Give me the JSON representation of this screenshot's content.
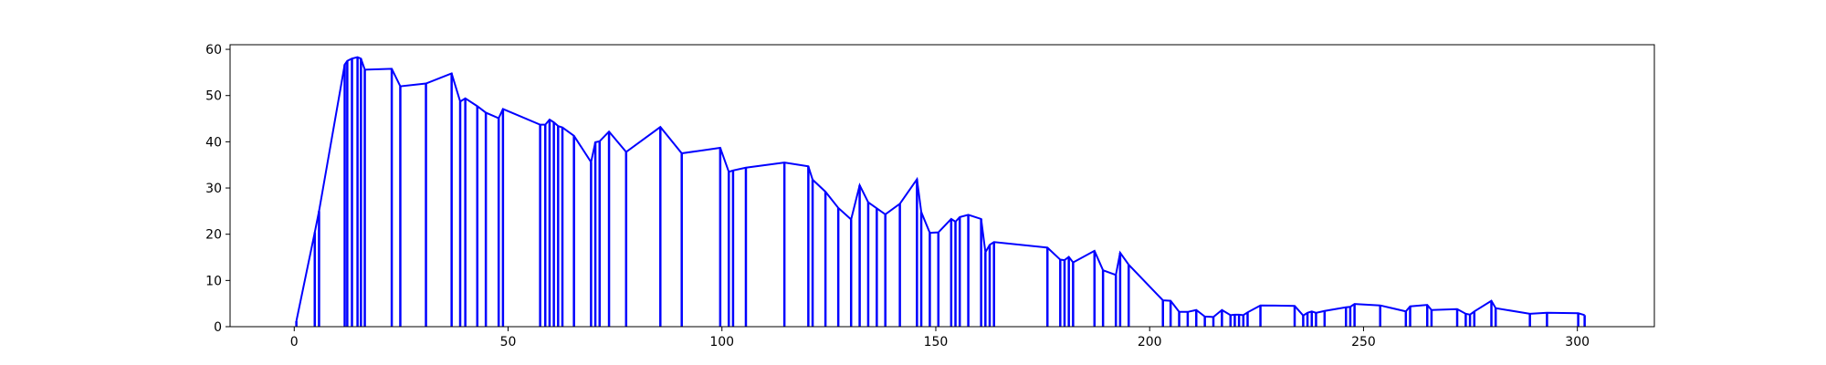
{
  "chart_data": {
    "type": "line",
    "title": "",
    "xlabel": "",
    "ylabel": "",
    "xlim": [
      -15,
      318
    ],
    "ylim": [
      0,
      61
    ],
    "xticks": [
      0,
      50,
      100,
      150,
      200,
      250,
      300
    ],
    "yticks": [
      0,
      10,
      20,
      30,
      40,
      50,
      60
    ],
    "grid": false,
    "legend": "none",
    "colors": {
      "series": "#0000ff",
      "axes": "#000000"
    },
    "series": [
      {
        "x": [
          0.5,
          4.8,
          5.8,
          11.8,
          12.4,
          13.5,
          14.8,
          15.6,
          16.5,
          22.8,
          24.8,
          30.8,
          36.8,
          38.8,
          40.0,
          42.8,
          44.8,
          47.8,
          48.8,
          57.5,
          58.7,
          59.7,
          60.7,
          61.7,
          62.7,
          65.4,
          69.4,
          70.4,
          71.4,
          73.6,
          77.6,
          85.6,
          90.6,
          99.6,
          101.6,
          102.6,
          105.6,
          114.6,
          120.2,
          121.2,
          124.2,
          127.2,
          130.2,
          132.2,
          134.2,
          136.2,
          138.2,
          141.6,
          145.6,
          146.6,
          148.6,
          150.6,
          153.6,
          154.6,
          155.6,
          157.6,
          160.6,
          161.6,
          162.6,
          163.6,
          176.1,
          179.1,
          180.1,
          181.1,
          182.1,
          187.1,
          189.1,
          192.1,
          193.1,
          195.1,
          203.1,
          204.9,
          206.9,
          208.9,
          210.9,
          212.9,
          214.9,
          216.9,
          218.9,
          219.9,
          220.9,
          221.9,
          222.9,
          225.9,
          233.9,
          235.9,
          236.9,
          237.9,
          238.9,
          240.9,
          245.9,
          246.9,
          247.9,
          253.9,
          259.9,
          260.9,
          264.9,
          265.9,
          271.9,
          273.9,
          274.9,
          275.9,
          279.9,
          280.9,
          288.9,
          292.9,
          300.2,
          301.7
        ],
        "y": [
          1.2,
          20.4,
          25.0,
          56.7,
          57.5,
          58.0,
          58.3,
          58.0,
          55.6,
          55.8,
          52.0,
          52.6,
          54.8,
          48.7,
          49.4,
          47.7,
          46.3,
          45.1,
          47.1,
          43.7,
          43.7,
          44.8,
          44.2,
          43.4,
          43.1,
          41.3,
          35.6,
          39.9,
          40.1,
          42.2,
          37.8,
          43.2,
          37.5,
          38.7,
          33.5,
          33.8,
          34.4,
          35.5,
          34.7,
          31.8,
          29.2,
          25.7,
          23.2,
          30.6,
          26.9,
          25.6,
          24.3,
          26.6,
          31.9,
          24.8,
          20.3,
          20.4,
          23.3,
          22.7,
          23.7,
          24.2,
          23.3,
          16.1,
          17.7,
          18.3,
          17.1,
          14.5,
          14.4,
          15.1,
          13.9,
          16.4,
          12.2,
          11.2,
          16.0,
          13.4,
          5.7,
          5.6,
          3.2,
          3.2,
          3.6,
          2.2,
          2.1,
          3.6,
          2.5,
          2.6,
          2.6,
          2.5,
          3.1,
          4.6,
          4.5,
          2.4,
          3.0,
          3.3,
          3.0,
          3.4,
          4.2,
          4.3,
          4.9,
          4.6,
          3.3,
          4.4,
          4.7,
          3.6,
          3.8,
          2.8,
          2.6,
          3.3,
          5.6,
          4.0,
          2.8,
          3.0,
          2.9,
          2.5
        ]
      }
    ]
  }
}
